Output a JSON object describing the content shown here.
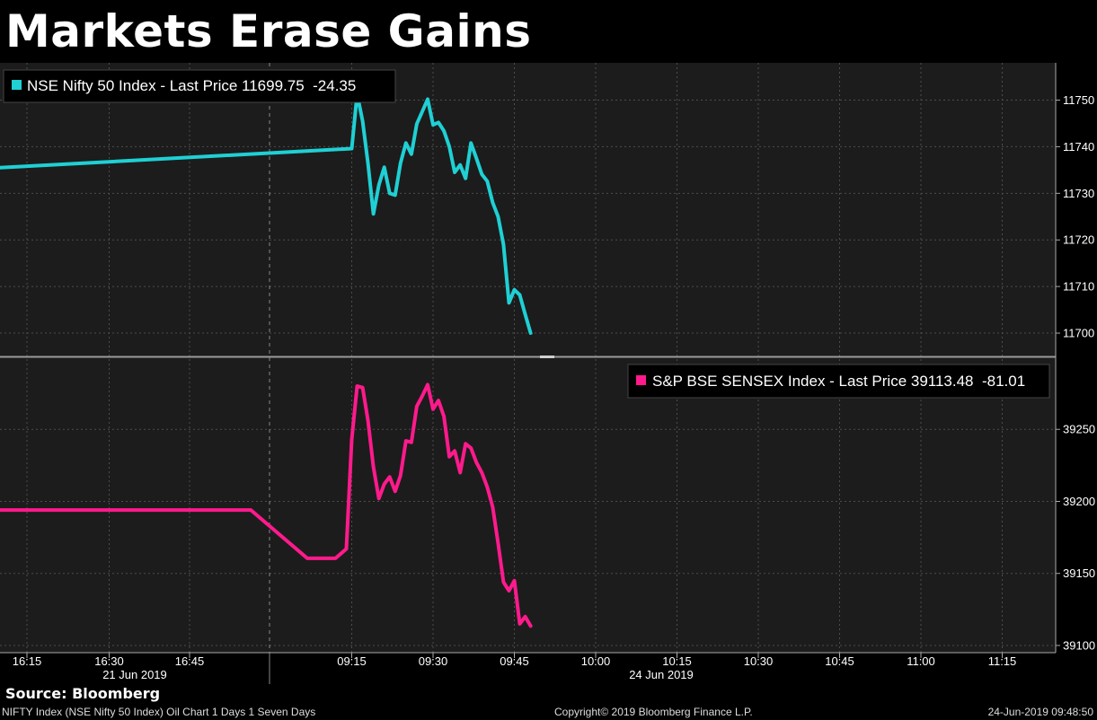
{
  "header": {
    "title": "Markets Erase Gains"
  },
  "source": "Source: Bloomberg",
  "footer": {
    "left": "NIFTY Index (NSE Nifty 50 Index) Oil Chart 1 Days 1 Seven Days",
    "center": "Copyright© 2019 Bloomberg Finance L.P.",
    "right": "24-Jun-2019 09:48:50"
  },
  "colors": {
    "background": "#1c1c1c",
    "grid": "#555555",
    "nifty": "#1fd0d4",
    "sensex": "#ff1a8c"
  },
  "chart_data": [
    {
      "type": "line",
      "legend": "NSE Nifty 50 Index - Last Price 11699.75  -24.35",
      "legend_position": "top-left",
      "legend_color": "#1fd0d4",
      "ylim": [
        11695,
        11758
      ],
      "yticks": [
        11700,
        11710,
        11720,
        11730,
        11740,
        11750
      ],
      "grid": true,
      "series": [
        {
          "color": "#1fd0d4",
          "x": [
            "16:00",
            "09:15",
            "09:16",
            "09:17",
            "09:18",
            "09:19",
            "09:20",
            "09:21",
            "09:22",
            "09:23",
            "09:24",
            "09:25",
            "09:26",
            "09:27",
            "09:28",
            "09:29",
            "09:30",
            "09:31",
            "09:32",
            "09:33",
            "09:34",
            "09:35",
            "09:36",
            "09:37",
            "09:38",
            "09:39",
            "09:40",
            "09:41",
            "09:42",
            "09:43",
            "09:44",
            "09:45",
            "09:46",
            "09:47",
            "09:48"
          ],
          "values": [
            11735.5,
            11739.6,
            11751.3,
            11745.5,
            11736.4,
            11725.6,
            11731.8,
            11735.6,
            11730,
            11729.6,
            11736.5,
            11740.8,
            11738.4,
            11744.9,
            11747.5,
            11750.2,
            11744.7,
            11745.2,
            11743.4,
            11740,
            11734.5,
            11736.1,
            11733.2,
            11740.8,
            11737.5,
            11734.1,
            11732.6,
            11728,
            11725,
            11719,
            11706.5,
            11709.3,
            11708.2,
            11704,
            11700
          ]
        }
      ]
    },
    {
      "type": "line",
      "legend": "S&P BSE SENSEX Index - Last Price 39113.48  -81.01",
      "legend_position": "top-right",
      "legend_color": "#ff1a8c",
      "ylim": [
        39095,
        39300
      ],
      "yticks": [
        39100,
        39150,
        39200,
        39250
      ],
      "grid": true,
      "series": [
        {
          "color": "#ff1a8c",
          "x": [
            "16:00",
            "16:30",
            "16:57",
            "20:00",
            "09:12",
            "09:14",
            "09:15",
            "09:16",
            "09:17",
            "09:18",
            "09:19",
            "09:20",
            "09:21",
            "09:22",
            "09:23",
            "09:24",
            "09:25",
            "09:26",
            "09:27",
            "09:28",
            "09:29",
            "09:30",
            "09:31",
            "09:32",
            "09:33",
            "09:34",
            "09:35",
            "09:36",
            "09:37",
            "09:38",
            "09:39",
            "09:40",
            "09:41",
            "09:42",
            "09:43",
            "09:44",
            "09:45",
            "09:46",
            "09:47",
            "09:48"
          ],
          "values": [
            39194,
            39194,
            39194,
            39160.5,
            39160.5,
            39167,
            39243,
            39280,
            39279,
            39256,
            39224,
            39202,
            39212,
            39217,
            39207,
            39218,
            39242,
            39241,
            39266,
            39273,
            39281,
            39264,
            39270,
            39259,
            39231,
            39235,
            39220,
            39240,
            39237,
            39227,
            39220,
            39210,
            39196,
            39171,
            39144,
            39138,
            39145,
            39115,
            39120,
            39113.5
          ]
        }
      ]
    }
  ],
  "x_axis": {
    "tick_labels": [
      "16:15",
      "16:30",
      "16:45",
      "09:15",
      "09:30",
      "09:45",
      "10:00",
      "10:15",
      "10:30",
      "10:45",
      "11:00",
      "11:15"
    ],
    "date_labels": [
      "21 Jun 2019",
      "24 Jun 2019"
    ]
  }
}
